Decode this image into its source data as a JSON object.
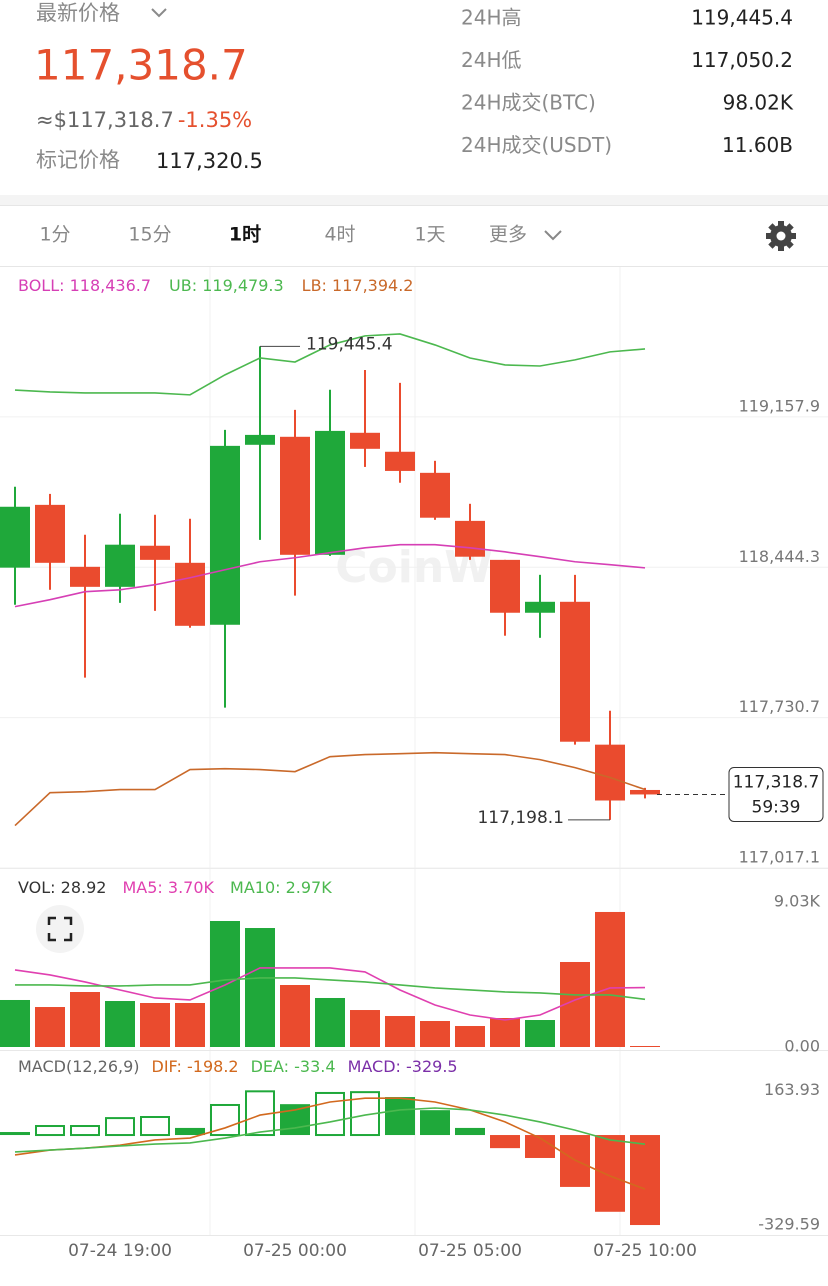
{
  "header": {
    "label": "最新价格",
    "price": "117,318.7",
    "usd": "≈$117,318.7",
    "change": "-1.35%",
    "mark_label": "标记价格",
    "mark_price": "117,320.5"
  },
  "stats": [
    {
      "label": "24H高",
      "value": "119,445.4"
    },
    {
      "label": "24H低",
      "value": "117,050.2"
    },
    {
      "label": "24H成交(BTC)",
      "value": "98.02K"
    },
    {
      "label": "24H成交(USDT)",
      "value": "11.60B"
    }
  ],
  "tabs": [
    "1分",
    "15分",
    "1时",
    "4时",
    "1天"
  ],
  "active_tab": 2,
  "more": "更多",
  "watermark": "CoinW",
  "chart_data": [
    {
      "type": "candlestick",
      "categories": [
        null,
        null,
        null,
        "07-24 19:00",
        null,
        null,
        null,
        null,
        "07-25 00:00",
        null,
        null,
        null,
        null,
        "07-25 05:00",
        null,
        null,
        null,
        null,
        "07-25 10:00"
      ],
      "open": [
        118395,
        118693,
        118399,
        118304,
        118499,
        118418,
        118124,
        118978,
        119016,
        118456,
        119035,
        118945,
        118845,
        118617,
        118432,
        118181,
        118233,
        117555,
        117340
      ],
      "high": [
        118779,
        118745,
        118551,
        118651,
        118646,
        118627,
        119049,
        119445.4,
        119144,
        119239,
        119333,
        119272,
        118902,
        118698,
        118432,
        118361,
        118361,
        117716,
        117350
      ],
      "low": [
        118219,
        118290,
        117873,
        118228,
        118190,
        118110,
        117731,
        118527,
        118262,
        118451,
        118873,
        118798,
        118622,
        118432,
        118072,
        118062,
        117555,
        117198.1,
        117300
      ],
      "close": [
        118684,
        118418,
        118304,
        118504,
        118432,
        118119,
        118973,
        119025,
        118456,
        119044,
        118959,
        118854,
        118632,
        118447,
        118181,
        118233,
        117569,
        117290,
        117318.7
      ],
      "up_color": "#1fa83a",
      "down_color": "#ea4b2e",
      "series": [
        {
          "name": "BOLL",
          "label": "118,436.7",
          "color": "#d63fb5",
          "values": [
            118210,
            118243,
            118281,
            118290,
            118314,
            118347,
            118385,
            118423,
            118442,
            118466,
            118489,
            118504,
            118504,
            118489,
            118470,
            118447,
            118423,
            118409,
            118394
          ]
        },
        {
          "name": "UB",
          "label": "119,479.3",
          "color": "#4cb84f",
          "values": [
            119238,
            119229,
            119224,
            119224,
            119224,
            119215,
            119310,
            119390,
            119371,
            119452,
            119495,
            119504,
            119452,
            119390,
            119357,
            119352,
            119381,
            119419,
            119433
          ]
        },
        {
          "name": "LB",
          "label": "117,394.2",
          "color": "#c9692a",
          "values": [
            117171,
            117327,
            117332,
            117342,
            117342,
            117437,
            117441,
            117437,
            117427,
            117498,
            117508,
            117512,
            117517,
            117512,
            117508,
            117484,
            117446,
            117399,
            117342
          ]
        }
      ],
      "high_label": "119,445.4",
      "low_label": "117,198.1",
      "last_price_label": "117,318.7",
      "countdown": "59:39",
      "ylim": [
        116969.7,
        119821.8
      ],
      "yticks": [
        {
          "value": 119157.9,
          "label": "119,157.9"
        },
        {
          "value": 118444.3,
          "label": "118,444.3"
        },
        {
          "value": 117730.7,
          "label": "117,730.7"
        },
        {
          "value": 117017.1,
          "label": "117,017.1"
        }
      ],
      "grid": true
    },
    {
      "type": "bar",
      "name": "VOL",
      "values": [
        2928,
        2490,
        3425,
        2864,
        2740,
        2740,
        7847,
        7410,
        3861,
        3052,
        2303,
        1930,
        1619,
        1307,
        1806,
        1681,
        5294,
        8409,
        28.92
      ],
      "series": [
        {
          "name": "MA5",
          "label": "3.70K",
          "color": "#e040b0",
          "values": [
            4797,
            4486,
            4050,
            3551,
            3053,
            2928,
            3863,
            4922,
            4922,
            4922,
            4673,
            3551,
            2617,
            1994,
            1682,
            1994,
            2928,
            3676,
            3700
          ]
        },
        {
          "name": "MA10",
          "label": "2.97K",
          "color": "#4cb84f",
          "values": [
            3863,
            3863,
            3800,
            3800,
            3863,
            3863,
            4174,
            4299,
            4299,
            4174,
            4050,
            3863,
            3676,
            3551,
            3427,
            3364,
            3240,
            3240,
            2970
          ]
        }
      ],
      "ylim": [
        0,
        11023
      ],
      "yticks": [
        {
          "value": 9030,
          "label": "9.03K"
        },
        {
          "value": 0,
          "label": "0.00"
        }
      ]
    },
    {
      "type": "macd",
      "title": "MACD(12,26,9)",
      "up_color": "#1fa83a",
      "down_color": "#ea4b2e",
      "series": [
        {
          "name": "DIF",
          "color": "#d2691e",
          "values": [
            -73,
            -55,
            -48,
            -37,
            -18,
            -11,
            26,
            73,
            92,
            121,
            135,
            135,
            121,
            92,
            48,
            -11,
            -92,
            -150,
            -198.2
          ]
        },
        {
          "name": "DEA",
          "color": "#4cb84f",
          "values": [
            -62,
            -55,
            -48,
            -40,
            -33,
            -29,
            -11,
            11,
            26,
            48,
            73,
            92,
            99,
            92,
            73,
            48,
            18,
            -18,
            -33.4
          ]
        },
        {
          "name": "MACD",
          "color": "#7b2fa8",
          "values": [
            11,
            33,
            33,
            62,
            66,
            26,
            110,
            160,
            113,
            154,
            157,
            139,
            91,
            26,
            -48,
            -84,
            -190,
            -281,
            -329.5
          ]
        }
      ],
      "ylim": [
        -366,
        293
      ],
      "yticks": [
        {
          "value": 163.93,
          "label": "163.93"
        },
        {
          "value": -329.59,
          "label": "-329.59"
        }
      ]
    }
  ]
}
